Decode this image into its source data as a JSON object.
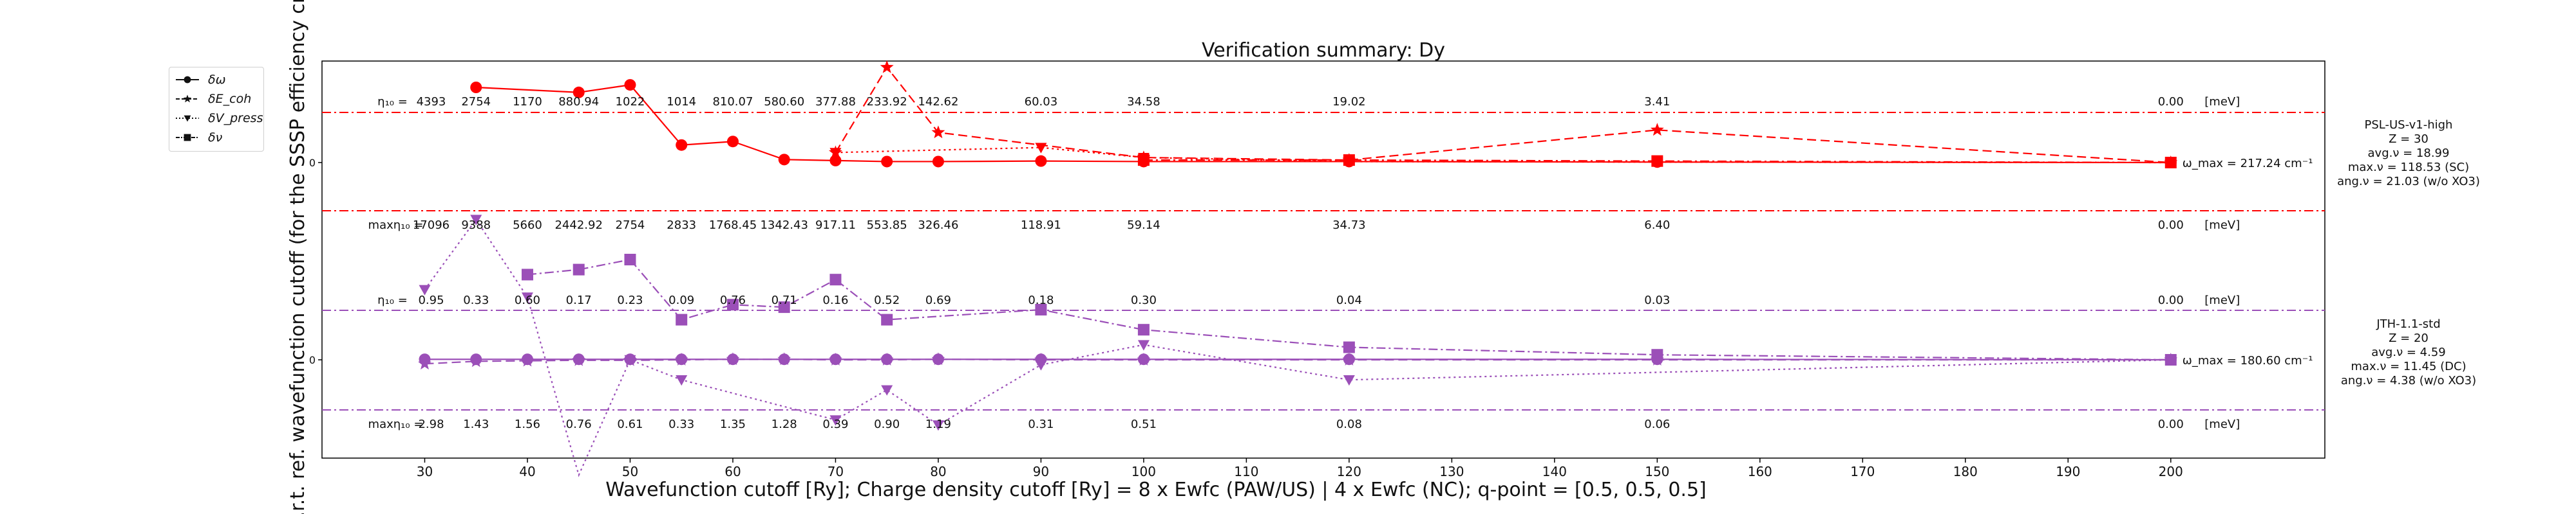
{
  "chart_data": {
    "type": "line",
    "title": "Verification summary: Dy",
    "xlabel": "Wavefunction cutoff [Ry]; Charge density cutoff [Ry] = 8 x Ewfc (PAW/US) | 4 x Ewfc (NC); q-point = [0.5, 0.5, 0.5]",
    "ylabel": "w.r.t. ref. wavefunction cutoff (for the SSSP efficiency crit",
    "xlim": [
      20,
      215
    ],
    "xticks": [
      30,
      40,
      50,
      60,
      70,
      80,
      90,
      100,
      110,
      120,
      130,
      140,
      150,
      160,
      170,
      180,
      190,
      200
    ],
    "y_tick_zero_label": "0",
    "unit_label": "[meV]",
    "legend": {
      "placement": "upper-left outside",
      "entries": [
        {
          "label": "δω",
          "marker": "circle",
          "line": "solid"
        },
        {
          "label": "δE_coh",
          "marker": "star",
          "line": "dashed"
        },
        {
          "label": "δV_press",
          "marker": "triangle-down",
          "line": "dotted"
        },
        {
          "label": "δν",
          "marker": "square",
          "line": "dash-dot"
        }
      ]
    },
    "x": [
      30,
      35,
      40,
      45,
      50,
      55,
      60,
      65,
      70,
      75,
      80,
      90,
      100,
      120,
      150,
      200
    ],
    "panels": [
      {
        "name": "PSL-US-v1-high",
        "color": "#ff0000",
        "info": [
          "PSL-US-v1-high",
          "Z = 30",
          "avg.ν = 18.99",
          "max.ν = 118.53 (SC)",
          "ang.ν = 21.03 (w/o XO3)"
        ],
        "omega_max_label": "ω_max = 217.24 cm⁻¹",
        "eta_prefix": "η₁₀ =",
        "eta_values": [
          "4393",
          "2754",
          "1170",
          "880.94",
          "1022",
          "1014",
          "810.07",
          "580.60",
          "377.88",
          "233.92",
          "142.62",
          "60.03",
          "34.58",
          "19.02",
          "3.41",
          "0.00"
        ],
        "eta_x": [
          30,
          35,
          40,
          45,
          50,
          55,
          60,
          65,
          70,
          75,
          80,
          90,
          100,
          120,
          150,
          200
        ],
        "maxeta_prefix": "maxη₁₀ =",
        "maxeta_values": [
          "17096",
          "9388",
          "5660",
          "2442.92",
          "2754",
          "2833",
          "1768.45",
          "1342.43",
          "917.11",
          "553.85",
          "326.46",
          "118.91",
          "59.14",
          "34.73",
          "6.40",
          "0.00"
        ],
        "maxeta_x": [
          30,
          35,
          40,
          45,
          50,
          55,
          60,
          65,
          70,
          75,
          80,
          90,
          100,
          120,
          150,
          200
        ],
        "series": [
          {
            "name": "δω",
            "y": [
              null,
              1.5,
              null,
              1.4,
              1.55,
              0.35,
              0.42,
              0.06,
              0.04,
              0.02,
              0.02,
              0.03,
              0.02,
              0.02,
              0.01,
              0
            ]
          },
          {
            "name": "δE_coh",
            "y": [
              null,
              null,
              null,
              null,
              null,
              null,
              null,
              null,
              0.2,
              1.9,
              0.6,
              null,
              0.1,
              0.05,
              0.65,
              0
            ]
          },
          {
            "name": "δV_press",
            "y": [
              null,
              null,
              null,
              null,
              null,
              null,
              null,
              null,
              0.2,
              null,
              null,
              0.3,
              0.1,
              0.02,
              0.01,
              0
            ]
          },
          {
            "name": "δν",
            "y": [
              null,
              null,
              null,
              null,
              null,
              null,
              null,
              null,
              null,
              null,
              null,
              null,
              0.05,
              0.05,
              0.03,
              0
            ]
          }
        ]
      },
      {
        "name": "JTH-1.1-std",
        "color": "#9b4fb8",
        "info": [
          "JTH-1.1-std",
          "Z = 20",
          "avg.ν = 4.59",
          "max.ν = 11.45 (DC)",
          "ang.ν = 4.38 (w/o XO3)"
        ],
        "omega_max_label": "ω_max = 180.60 cm⁻¹",
        "eta_prefix": "η₁₀ =",
        "eta_values": [
          "0.95",
          "0.33",
          "0.60",
          "0.17",
          "0.23",
          "0.09",
          "0.76",
          "0.71",
          "0.16",
          "0.52",
          "0.69",
          "0.18",
          "0.30",
          "0.04",
          "0.03",
          "0.00"
        ],
        "eta_x": [
          30,
          35,
          40,
          45,
          50,
          55,
          60,
          65,
          70,
          75,
          80,
          90,
          100,
          120,
          150,
          200
        ],
        "maxeta_prefix": "maxη₁₀ =",
        "maxeta_values": [
          "2.98",
          "1.43",
          "1.56",
          "0.76",
          "0.61",
          "0.33",
          "1.35",
          "1.28",
          "0.39",
          "0.90",
          "1.19",
          "0.31",
          "0.51",
          "0.08",
          "0.06",
          "0.00"
        ],
        "maxeta_x": [
          30,
          35,
          40,
          45,
          50,
          55,
          60,
          65,
          70,
          75,
          80,
          90,
          100,
          120,
          150,
          200
        ],
        "series": [
          {
            "name": "δω",
            "y": [
              0.01,
              0.01,
              0.01,
              0.01,
              0.01,
              0.01,
              0.01,
              0.01,
              0.01,
              0.01,
              0.01,
              0.01,
              0.01,
              0.01,
              0.01,
              0
            ]
          },
          {
            "name": "δE_coh",
            "y": [
              -0.08,
              -0.03,
              -0.02,
              -0.01,
              -0.01,
              0.0,
              0.01,
              0.01,
              0.0,
              0.0,
              0.01,
              0.0,
              0.0,
              0.0,
              0.0,
              0
            ]
          },
          {
            "name": "δV_press",
            "y": [
              1.4,
              2.8,
              1.25,
              -2.3,
              0.0,
              -0.4,
              null,
              null,
              -1.2,
              -0.6,
              -1.3,
              -0.1,
              0.3,
              -0.4,
              null,
              0
            ]
          },
          {
            "name": "δν",
            "y": [
              null,
              null,
              1.7,
              1.8,
              2.0,
              0.8,
              1.1,
              1.05,
              1.6,
              0.8,
              null,
              1.0,
              0.6,
              0.25,
              0.1,
              0
            ]
          }
        ]
      }
    ]
  }
}
